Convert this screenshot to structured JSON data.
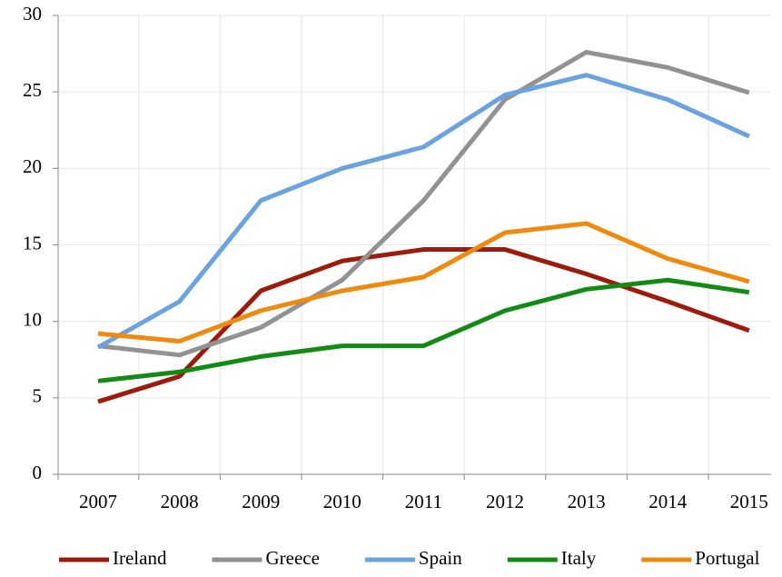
{
  "chart_data": {
    "type": "line",
    "categories": [
      "2007",
      "2008",
      "2009",
      "2010",
      "2011",
      "2012",
      "2013",
      "2014",
      "2015"
    ],
    "series": [
      {
        "name": "Ireland",
        "color": "#9b1c0c",
        "values": [
          4.75,
          6.4,
          12.0,
          13.95,
          14.7,
          14.7,
          13.1,
          11.3,
          9.4
        ]
      },
      {
        "name": "Greece",
        "color": "#929292",
        "values": [
          8.4,
          7.8,
          9.6,
          12.7,
          17.9,
          24.5,
          27.6,
          26.6,
          24.95
        ]
      },
      {
        "name": "Spain",
        "color": "#6aa3df",
        "values": [
          8.3,
          11.3,
          17.9,
          20.0,
          21.4,
          24.8,
          26.1,
          24.5,
          22.1
        ]
      },
      {
        "name": "Italy",
        "color": "#138a13",
        "values": [
          6.1,
          6.7,
          7.7,
          8.4,
          8.4,
          10.7,
          12.1,
          12.7,
          11.9
        ]
      },
      {
        "name": "Portugal",
        "color": "#f08a0f",
        "values": [
          9.2,
          8.7,
          10.7,
          12.0,
          12.9,
          15.8,
          16.4,
          14.1,
          12.6
        ]
      }
    ],
    "ylim": [
      0,
      30
    ],
    "yticks": [
      0,
      5,
      10,
      15,
      20,
      25,
      30
    ],
    "grid": true,
    "legend": "bottom"
  }
}
